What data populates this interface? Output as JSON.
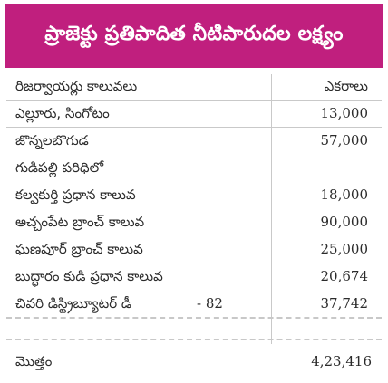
{
  "title": "ప్రాజెక్టు ప్రతిపాదిత నీటిపారుదల లక్ష్యం",
  "columns": {
    "left": "రిజర్వాయర్లు కాలువలు",
    "right": "ఎకరాలు"
  },
  "rows": [
    {
      "name": "ఎల్లూరు, సింగోటం",
      "suffix": "",
      "acres": "13,000"
    },
    {
      "name": "జొన్నలబొగుడ",
      "suffix": "",
      "acres": "57,000"
    },
    {
      "name": "గుడిపల్లి పరిధిలో",
      "suffix": "",
      "acres": ""
    },
    {
      "name": "కల్వకుర్తి ప్రధాన కాలువ",
      "suffix": "",
      "acres": "18,000"
    },
    {
      "name": "అచ్చంపేట బ్రాంచ్ కాలువ",
      "suffix": "",
      "acres": "90,000"
    },
    {
      "name": "ఘణపూర్ బ్రాంచ్ కాలువ",
      "suffix": "",
      "acres": "25,000"
    },
    {
      "name": "బుద్ధారం కుడి ప్రధాన కాలువ",
      "suffix": "",
      "acres": "20,674"
    },
    {
      "name": "చివరి డిస్ట్రిబ్యూటర్ డీ",
      "suffix": "- 82",
      "acres": "37,742"
    }
  ],
  "total": {
    "label": "మొత్తం",
    "acres": "4,23,416"
  },
  "colors": {
    "header_bg": "#c01f7e",
    "header_text": "#ffffff",
    "rule": "#c9c9c9"
  }
}
